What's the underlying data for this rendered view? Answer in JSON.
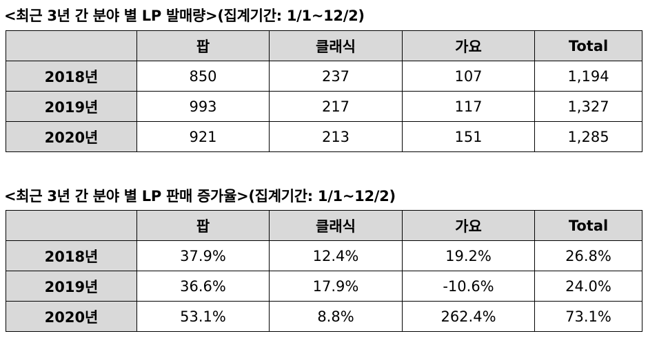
{
  "volume_section": {
    "title": "<최근 3년 간 분야 별 LP 발매량>(집계기간: 1/1~12/2)",
    "headers": [
      "",
      "팝",
      "클래식",
      "가요",
      "Total"
    ],
    "rows": [
      {
        "year": "2018년",
        "values": [
          "850",
          "237",
          "107",
          "1,194"
        ]
      },
      {
        "year": "2019년",
        "values": [
          "993",
          "217",
          "117",
          "1,327"
        ]
      },
      {
        "year": "2020년",
        "values": [
          "921",
          "213",
          "151",
          "1,285"
        ]
      }
    ]
  },
  "growth_section": {
    "title": "<최근 3년 간 분야 별 LP 판매 증가율>(집계기간: 1/1~12/2)",
    "headers": [
      "",
      "팝",
      "클래식",
      "가요",
      "Total"
    ],
    "rows": [
      {
        "year": "2018년",
        "values": [
          "37.9%",
          "12.4%",
          "19.2%",
          "26.8%"
        ]
      },
      {
        "year": "2019년",
        "values": [
          "36.6%",
          "17.9%",
          "-10.6%",
          "24.0%"
        ]
      },
      {
        "year": "2020년",
        "values": [
          "53.1%",
          "8.8%",
          "262.4%",
          "73.1%"
        ]
      }
    ]
  }
}
